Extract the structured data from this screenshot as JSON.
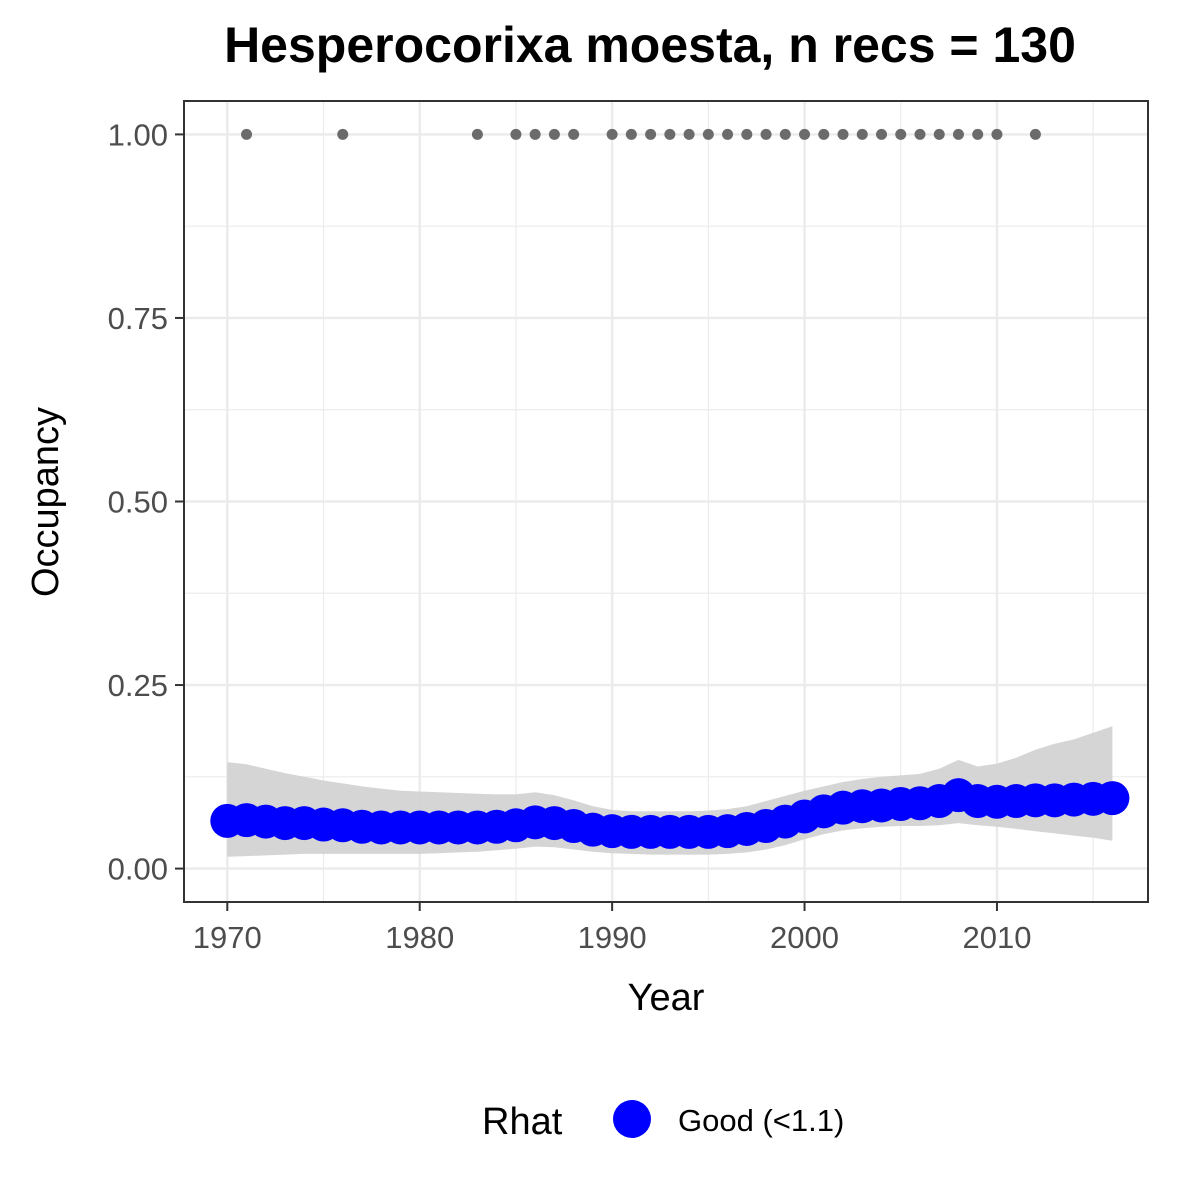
{
  "chart_data": {
    "type": "line",
    "title": "Hesperocorixa moesta, n recs = 130",
    "xlabel": "Year",
    "ylabel": "Occupancy",
    "xlim": [
      1967.75,
      2017.85
    ],
    "ylim": [
      -0.0455,
      1.0455
    ],
    "xticks": [
      1970,
      1980,
      1990,
      2000,
      2010
    ],
    "xtick_labels": [
      "1970",
      "1980",
      "1990",
      "2000",
      "2010"
    ],
    "yticks": [
      0,
      0.25,
      0.5,
      0.75,
      1.0
    ],
    "ytick_labels": [
      "0.00",
      "0.25",
      "0.50",
      "0.75",
      "1.00"
    ],
    "grid": true,
    "legend": {
      "title": "Rhat",
      "position": "bottom",
      "entries": [
        {
          "label": "Good (<1.1)",
          "color": "#0000ff"
        }
      ]
    },
    "colors": {
      "estimate": "#0000ff",
      "ribbon": "#d3d3d3",
      "records": "#6b6b6b",
      "panel_border": "#333333",
      "grid": "#ebebeb"
    },
    "records": {
      "name": "Records",
      "x": [
        1971,
        1976,
        1983,
        1985,
        1986,
        1987,
        1988,
        1990,
        1991,
        1992,
        1993,
        1994,
        1995,
        1996,
        1997,
        1998,
        1999,
        2000,
        2001,
        2002,
        2003,
        2004,
        2005,
        2006,
        2007,
        2008,
        2009,
        2010,
        2012
      ],
      "y": [
        1,
        1,
        1,
        1,
        1,
        1,
        1,
        1,
        1,
        1,
        1,
        1,
        1,
        1,
        1,
        1,
        1,
        1,
        1,
        1,
        1,
        1,
        1,
        1,
        1,
        1,
        1,
        1,
        1
      ]
    },
    "series": [
      {
        "name": "Good (<1.1)",
        "x": [
          1970,
          1971,
          1972,
          1973,
          1974,
          1975,
          1976,
          1977,
          1978,
          1979,
          1980,
          1981,
          1982,
          1983,
          1984,
          1985,
          1986,
          1987,
          1988,
          1989,
          1990,
          1991,
          1992,
          1993,
          1994,
          1995,
          1996,
          1997,
          1998,
          1999,
          2000,
          2001,
          2002,
          2003,
          2004,
          2005,
          2006,
          2007,
          2008,
          2009,
          2010,
          2011,
          2012,
          2013,
          2014,
          2015,
          2016
        ],
        "values": [
          0.065,
          0.066,
          0.064,
          0.062,
          0.062,
          0.06,
          0.059,
          0.057,
          0.056,
          0.056,
          0.056,
          0.056,
          0.056,
          0.056,
          0.057,
          0.059,
          0.063,
          0.062,
          0.058,
          0.053,
          0.051,
          0.05,
          0.05,
          0.05,
          0.05,
          0.05,
          0.051,
          0.054,
          0.058,
          0.064,
          0.071,
          0.078,
          0.083,
          0.085,
          0.086,
          0.088,
          0.089,
          0.092,
          0.1,
          0.092,
          0.091,
          0.092,
          0.093,
          0.093,
          0.094,
          0.095,
          0.096
        ],
        "lower": [
          0.016,
          0.017,
          0.018,
          0.019,
          0.02,
          0.02,
          0.02,
          0.02,
          0.02,
          0.02,
          0.02,
          0.021,
          0.022,
          0.023,
          0.025,
          0.027,
          0.03,
          0.029,
          0.026,
          0.023,
          0.021,
          0.02,
          0.019,
          0.019,
          0.019,
          0.019,
          0.02,
          0.022,
          0.026,
          0.032,
          0.04,
          0.047,
          0.052,
          0.055,
          0.057,
          0.058,
          0.058,
          0.059,
          0.062,
          0.059,
          0.057,
          0.054,
          0.051,
          0.048,
          0.045,
          0.042,
          0.038
        ],
        "upper": [
          0.145,
          0.142,
          0.136,
          0.13,
          0.125,
          0.12,
          0.116,
          0.112,
          0.109,
          0.106,
          0.105,
          0.104,
          0.103,
          0.102,
          0.101,
          0.101,
          0.104,
          0.1,
          0.093,
          0.085,
          0.08,
          0.078,
          0.078,
          0.078,
          0.078,
          0.079,
          0.081,
          0.085,
          0.092,
          0.099,
          0.106,
          0.112,
          0.118,
          0.122,
          0.125,
          0.127,
          0.129,
          0.136,
          0.148,
          0.139,
          0.143,
          0.151,
          0.162,
          0.17,
          0.176,
          0.185,
          0.194
        ]
      }
    ]
  }
}
